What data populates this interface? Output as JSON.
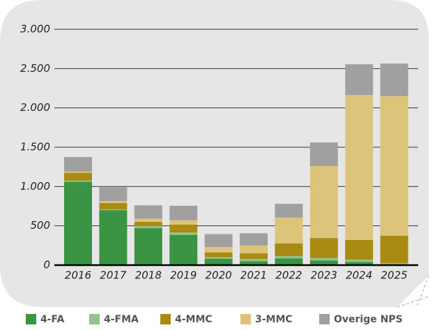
{
  "chart_data": {
    "type": "stacked_bar",
    "categories": [
      "2016",
      "2017",
      "2018",
      "2019",
      "2020",
      "2021",
      "2022",
      "2023",
      "2024",
      "2025"
    ],
    "series": [
      {
        "name": "4-FA",
        "color": "#3a9444",
        "values": [
          1060,
          700,
          470,
          385,
          80,
          50,
          85,
          60,
          40,
          10
        ]
      },
      {
        "name": "4-FMA",
        "color": "#8fc48a",
        "values": [
          15,
          10,
          25,
          30,
          20,
          30,
          30,
          30,
          30,
          15
        ]
      },
      {
        "name": "4-MMC",
        "color": "#a98a12",
        "values": [
          100,
          80,
          55,
          100,
          60,
          70,
          160,
          255,
          250,
          350
        ]
      },
      {
        "name": "3-MMC",
        "color": "#dcc57b",
        "values": [
          15,
          25,
          40,
          55,
          70,
          100,
          330,
          915,
          1845,
          1775
        ]
      },
      {
        "name": "Overige NPS",
        "color": "#a0a0a0",
        "values": [
          185,
          175,
          170,
          185,
          165,
          155,
          175,
          300,
          390,
          415
        ]
      }
    ],
    "ylim": [
      0,
      3000
    ],
    "yticks": [
      0,
      500,
      {
        "value": 1000,
        "label": "1.000"
      },
      {
        "value": 1500,
        "label": "1.500"
      },
      {
        "value": 2000,
        "label": "2.000"
      },
      {
        "value": 2500,
        "label": "2.500"
      },
      {
        "value": 3000,
        "label": "3.000"
      }
    ],
    "grid": true
  }
}
